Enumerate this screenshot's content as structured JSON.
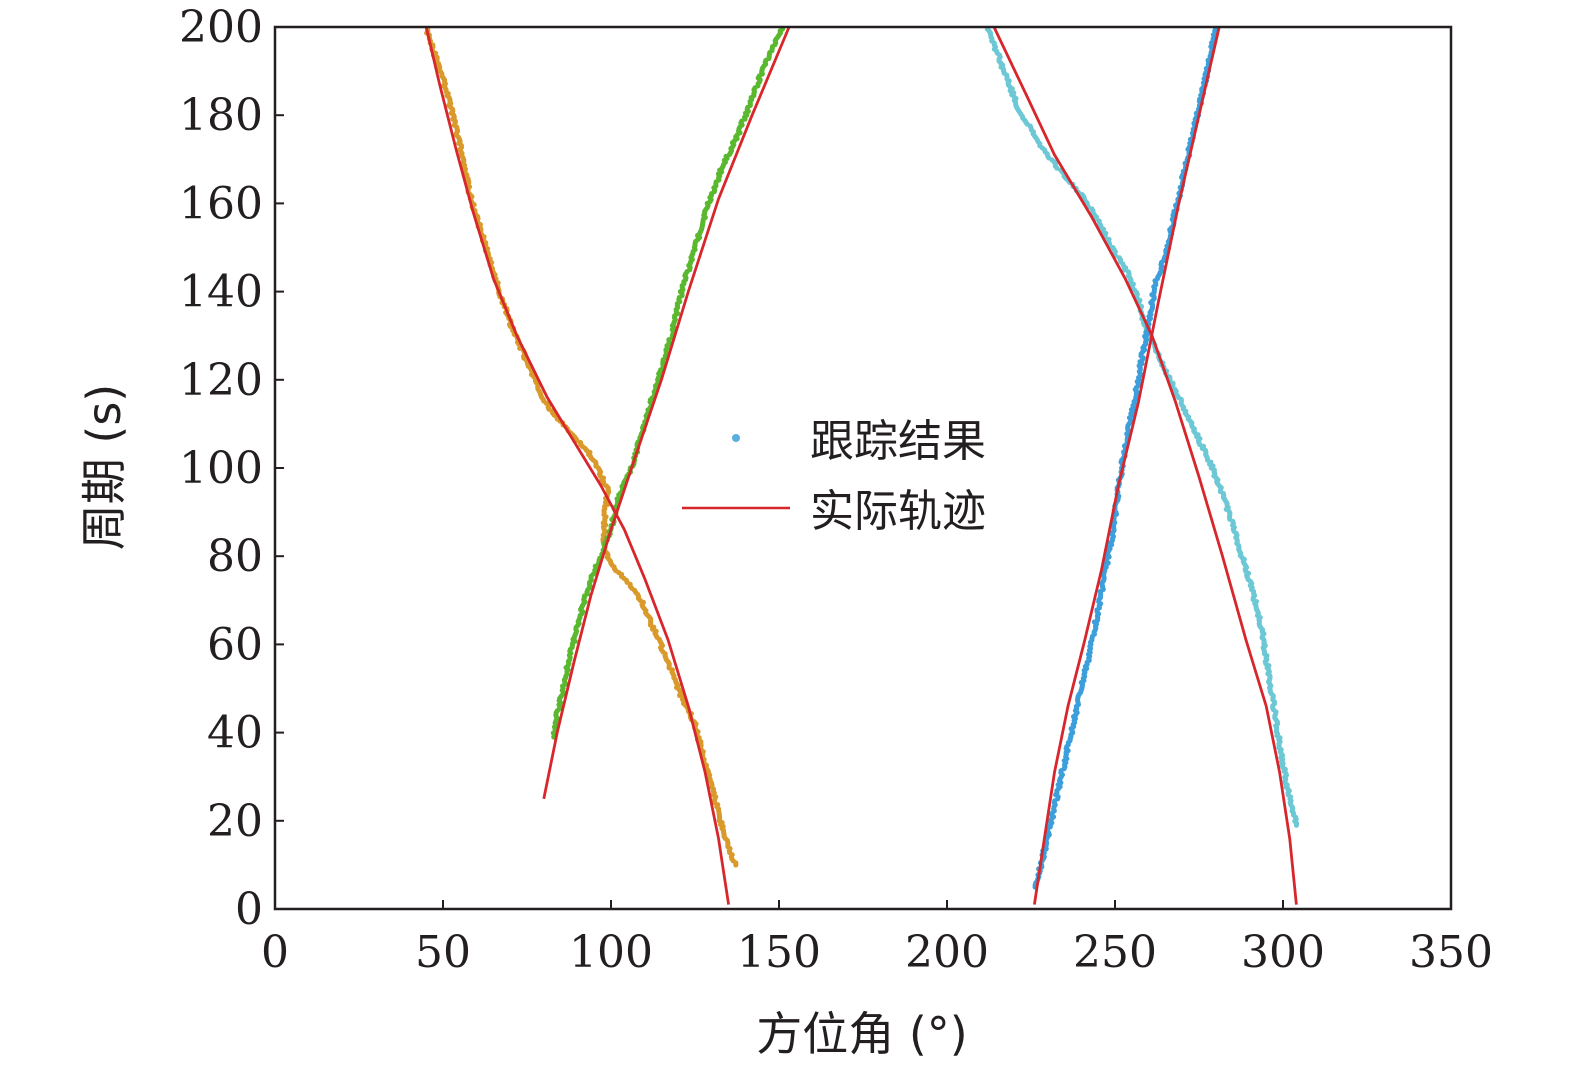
{
  "chart_data": {
    "type": "scatter",
    "xlabel": "方位角 (°)",
    "ylabel": "周期 (s)",
    "xlim": [
      0,
      350
    ],
    "ylim": [
      0,
      200
    ],
    "x_ticks": [
      0,
      50,
      100,
      150,
      200,
      250,
      300,
      350
    ],
    "y_ticks": [
      0,
      20,
      40,
      60,
      80,
      100,
      120,
      140,
      160,
      180,
      200
    ],
    "x_tick_labels": [
      "0",
      "50",
      "100",
      "150",
      "200",
      "250",
      "300",
      "350"
    ],
    "y_tick_labels": [
      "0",
      "20",
      "40",
      "60",
      "80",
      "100",
      "120",
      "140",
      "160",
      "180",
      "200"
    ],
    "grid": false,
    "legend": {
      "position": "center",
      "entries": [
        {
          "label": "跟踪结果",
          "marker": "dot",
          "color": "#5aaee0"
        },
        {
          "label": "实际轨迹",
          "marker": "line",
          "color": "#d7262c"
        }
      ]
    },
    "series": [
      {
        "kind": "tracking",
        "color": "#d99a2b",
        "points": [
          [
            137,
            10
          ],
          [
            134,
            16
          ],
          [
            131,
            25
          ],
          [
            128,
            33
          ],
          [
            125,
            42
          ],
          [
            121,
            48
          ],
          [
            117,
            56
          ],
          [
            113,
            63
          ],
          [
            109,
            70
          ],
          [
            104,
            75
          ],
          [
            100,
            78
          ],
          [
            98,
            82
          ],
          [
            98,
            88
          ],
          [
            99,
            95
          ],
          [
            96,
            100
          ],
          [
            93,
            104
          ],
          [
            88,
            108
          ],
          [
            83,
            112
          ],
          [
            79,
            117
          ],
          [
            75,
            124
          ],
          [
            70,
            133
          ],
          [
            66,
            142
          ],
          [
            62,
            152
          ],
          [
            58,
            162
          ],
          [
            56,
            170
          ],
          [
            53,
            180
          ],
          [
            50,
            188
          ],
          [
            47,
            195
          ],
          [
            45,
            200
          ]
        ]
      },
      {
        "kind": "tracking",
        "color": "#5ab82e",
        "points": [
          [
            83,
            39
          ],
          [
            84,
            44
          ],
          [
            86,
            51
          ],
          [
            88,
            58
          ],
          [
            91,
            67
          ],
          [
            94,
            75
          ],
          [
            97,
            80
          ],
          [
            100,
            86
          ],
          [
            102,
            93
          ],
          [
            106,
            100
          ],
          [
            110,
            110
          ],
          [
            114,
            120
          ],
          [
            118,
            130
          ],
          [
            121,
            140
          ],
          [
            125,
            150
          ],
          [
            129,
            160
          ],
          [
            133,
            168
          ],
          [
            138,
            176
          ],
          [
            142,
            184
          ],
          [
            146,
            192
          ],
          [
            151,
            200
          ]
        ]
      },
      {
        "kind": "tracking",
        "color": "#6cc8d4",
        "points": [
          [
            304,
            19
          ],
          [
            302,
            25
          ],
          [
            300,
            33
          ],
          [
            298,
            42
          ],
          [
            296,
            52
          ],
          [
            294,
            62
          ],
          [
            291,
            72
          ],
          [
            287,
            82
          ],
          [
            283,
            92
          ],
          [
            279,
            100
          ],
          [
            274,
            108
          ],
          [
            269,
            116
          ],
          [
            265,
            122
          ],
          [
            262,
            127
          ],
          [
            259,
            132
          ],
          [
            257,
            138
          ],
          [
            254,
            144
          ],
          [
            249,
            150
          ],
          [
            245,
            156
          ],
          [
            240,
            162
          ],
          [
            233,
            168
          ],
          [
            227,
            174
          ],
          [
            221,
            182
          ],
          [
            217,
            190
          ],
          [
            212,
            200
          ]
        ]
      },
      {
        "kind": "tracking",
        "color": "#3c9fdb",
        "points": [
          [
            226,
            5
          ],
          [
            228,
            10
          ],
          [
            231,
            20
          ],
          [
            234,
            30
          ],
          [
            237,
            40
          ],
          [
            240,
            50
          ],
          [
            243,
            60
          ],
          [
            246,
            72
          ],
          [
            249,
            84
          ],
          [
            251,
            95
          ],
          [
            253,
            105
          ],
          [
            256,
            116
          ],
          [
            258,
            125
          ],
          [
            260,
            133
          ],
          [
            262,
            142
          ],
          [
            265,
            148
          ],
          [
            267,
            155
          ],
          [
            270,
            165
          ],
          [
            273,
            175
          ],
          [
            276,
            185
          ],
          [
            278,
            192
          ],
          [
            280,
            200
          ]
        ]
      },
      {
        "kind": "actual",
        "color": "#d7262c",
        "points": [
          [
            135,
            1
          ],
          [
            132,
            16
          ],
          [
            128,
            31
          ],
          [
            123,
            46
          ],
          [
            117,
            61
          ],
          [
            110,
            75
          ],
          [
            104,
            86
          ],
          [
            97,
            96
          ],
          [
            89,
            106
          ],
          [
            81,
            116
          ],
          [
            72,
            130
          ],
          [
            65,
            143
          ],
          [
            59,
            158
          ],
          [
            54,
            172
          ],
          [
            49,
            187
          ],
          [
            45,
            200
          ]
        ]
      },
      {
        "kind": "actual",
        "color": "#d7262c",
        "points": [
          [
            80,
            25
          ],
          [
            84,
            40
          ],
          [
            89,
            56
          ],
          [
            94,
            71
          ],
          [
            100,
            86
          ],
          [
            107,
            102
          ],
          [
            115,
            120
          ],
          [
            123,
            140
          ],
          [
            132,
            161
          ],
          [
            142,
            180
          ],
          [
            153,
            200
          ]
        ]
      },
      {
        "kind": "actual",
        "color": "#d7262c",
        "points": [
          [
            304,
            1
          ],
          [
            302,
            16
          ],
          [
            299,
            31
          ],
          [
            295,
            46
          ],
          [
            289,
            61
          ],
          [
            282,
            80
          ],
          [
            275,
            98
          ],
          [
            268,
            115
          ],
          [
            261,
            130
          ],
          [
            253,
            143
          ],
          [
            243,
            157
          ],
          [
            232,
            171
          ],
          [
            224,
            184
          ],
          [
            214,
            200
          ]
        ]
      },
      {
        "kind": "actual",
        "color": "#d7262c",
        "points": [
          [
            226,
            1
          ],
          [
            229,
            16
          ],
          [
            232,
            31
          ],
          [
            236,
            46
          ],
          [
            241,
            61
          ],
          [
            246,
            77
          ],
          [
            251,
            96
          ],
          [
            257,
            115
          ],
          [
            263,
            138
          ],
          [
            269,
            160
          ],
          [
            275,
            180
          ],
          [
            281,
            200
          ]
        ]
      }
    ]
  }
}
